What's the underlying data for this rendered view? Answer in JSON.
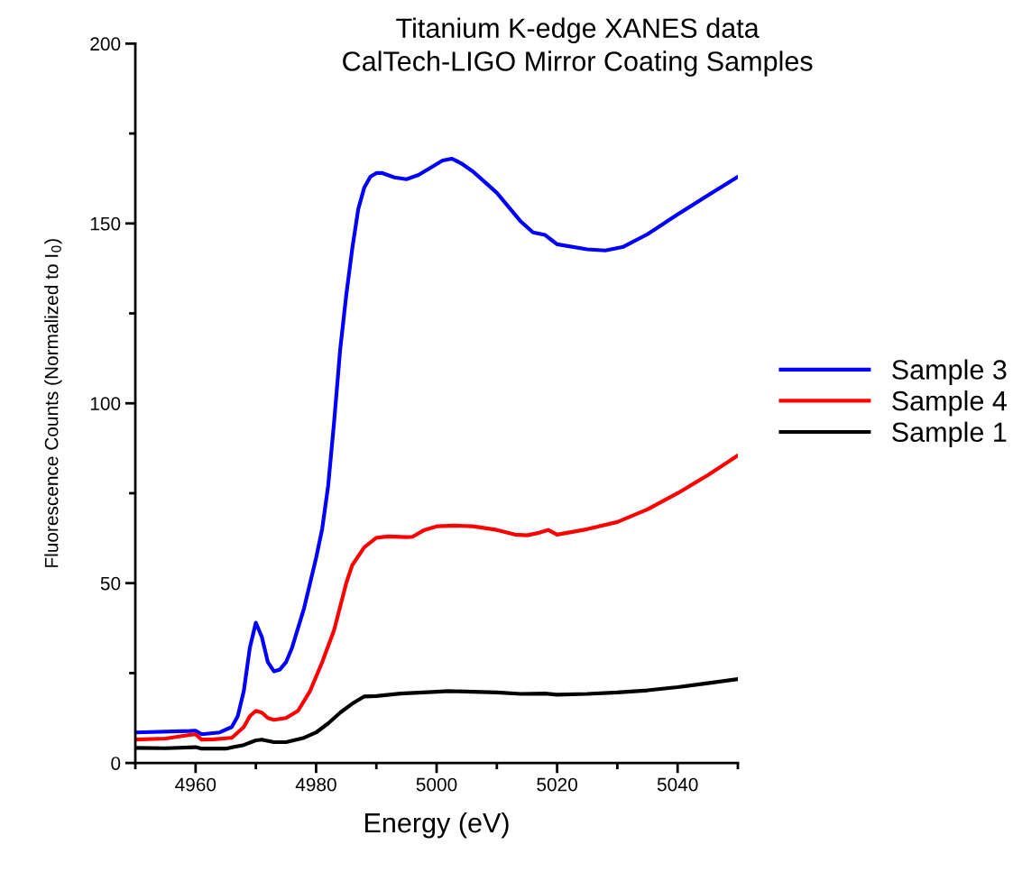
{
  "chart_data": {
    "type": "line",
    "title": "Titanium K-edge XANES data",
    "subtitle": "CalTech-LIGO Mirror Coating Samples",
    "xlabel": "Energy (eV)",
    "ylabel": "Fluorescence Counts (Normalized to I$_{0}$)",
    "xlim": [
      4950,
      5050
    ],
    "ylim": [
      0,
      200
    ],
    "xticks": [
      {
        "value": 4950,
        "label": null
      },
      4960,
      {
        "value": 4970,
        "label": null
      },
      4980,
      {
        "value": 4990,
        "label": null
      },
      5000,
      {
        "value": 5010,
        "label": null
      },
      5020,
      {
        "value": 5030,
        "label": null
      },
      5040,
      {
        "value": 5050,
        "label": null
      }
    ],
    "yticks": [
      0,
      {
        "value": 25,
        "label": null
      },
      50,
      {
        "value": 75,
        "label": null
      },
      100,
      {
        "value": 125,
        "label": null
      },
      150,
      {
        "value": 175,
        "label": null
      },
      200
    ],
    "grid": false,
    "legend": "right",
    "marker": "none",
    "line_style": "solid",
    "series": [
      {
        "name": "Sample 3",
        "color": "#0000ff",
        "x": [
          4950,
          4959,
          4960,
          4961,
          4964,
          4966,
          4967,
          4968,
          4969,
          4970,
          4971,
          4972,
          4973,
          4974,
          4975,
          4976,
          4978,
          4980,
          4981,
          4982,
          4983,
          4984,
          4985,
          4986,
          4987,
          4988,
          4989,
          4990,
          4991,
          4993,
          4995,
          4997,
          4999,
          5001,
          5002.5,
          5004,
          5006,
          5008,
          5010,
          5012,
          5014,
          5016,
          5018,
          5019,
          5020,
          5025,
          5028,
          5031,
          5035,
          5040,
          5045,
          5050
        ],
        "values": [
          8.5,
          8.9,
          9,
          8,
          8.5,
          10,
          13,
          20,
          32,
          39,
          35,
          28,
          25.5,
          26,
          28,
          32,
          43,
          57,
          65,
          77,
          95,
          115,
          130,
          143,
          154,
          160,
          163,
          164,
          164,
          162.8,
          162.3,
          163.5,
          165.5,
          167.5,
          168,
          166.8,
          164.5,
          161.5,
          158.5,
          154.5,
          150.5,
          147.5,
          146.8,
          145.5,
          144.2,
          142.8,
          142.5,
          143.5,
          147,
          152.5,
          157.8,
          163
        ]
      },
      {
        "name": "Sample 4",
        "color": "#ff0000",
        "x": [
          4950,
          4955,
          4959,
          4960,
          4961,
          4963,
          4966,
          4968,
          4969,
          4970,
          4971,
          4972,
          4973,
          4975,
          4977,
          4979,
          4981,
          4983,
          4985,
          4986,
          4988,
          4990,
          4992,
          4995,
          4996,
          4998,
          5000,
          5003,
          5006,
          5010,
          5013,
          5015,
          5017,
          5018.5,
          5020,
          5025,
          5030,
          5035,
          5040,
          5045,
          5050
        ],
        "values": [
          6.5,
          6.8,
          7.8,
          8,
          6.5,
          6.6,
          7,
          10,
          13,
          14.5,
          14,
          12.5,
          12,
          12.5,
          14.5,
          20,
          28,
          37,
          50,
          55,
          60,
          62.6,
          63,
          62.8,
          62.9,
          64.8,
          65.8,
          66,
          65.8,
          64.8,
          63.5,
          63.3,
          64,
          64.8,
          63.5,
          65,
          67,
          70.5,
          75,
          80,
          85.5
        ]
      },
      {
        "name": "Sample 1",
        "color": "#000000",
        "x": [
          4950,
          4955,
          4960,
          4961,
          4965,
          4968,
          4970,
          4971,
          4973,
          4975,
          4978,
          4980,
          4982,
          4984,
          4986,
          4988,
          4990,
          4994,
          5000,
          5002,
          5006,
          5010,
          5014,
          5018,
          5020,
          5025,
          5030,
          5035,
          5040,
          5045,
          5050
        ],
        "values": [
          4.2,
          4.1,
          4.4,
          4,
          4,
          5,
          6.3,
          6.5,
          5.8,
          5.8,
          7,
          8.5,
          11,
          14,
          16.5,
          18.5,
          18.6,
          19.3,
          19.8,
          20,
          19.8,
          19.6,
          19.2,
          19.3,
          19,
          19.2,
          19.6,
          20.2,
          21.1,
          22.2,
          23.3
        ]
      }
    ]
  }
}
